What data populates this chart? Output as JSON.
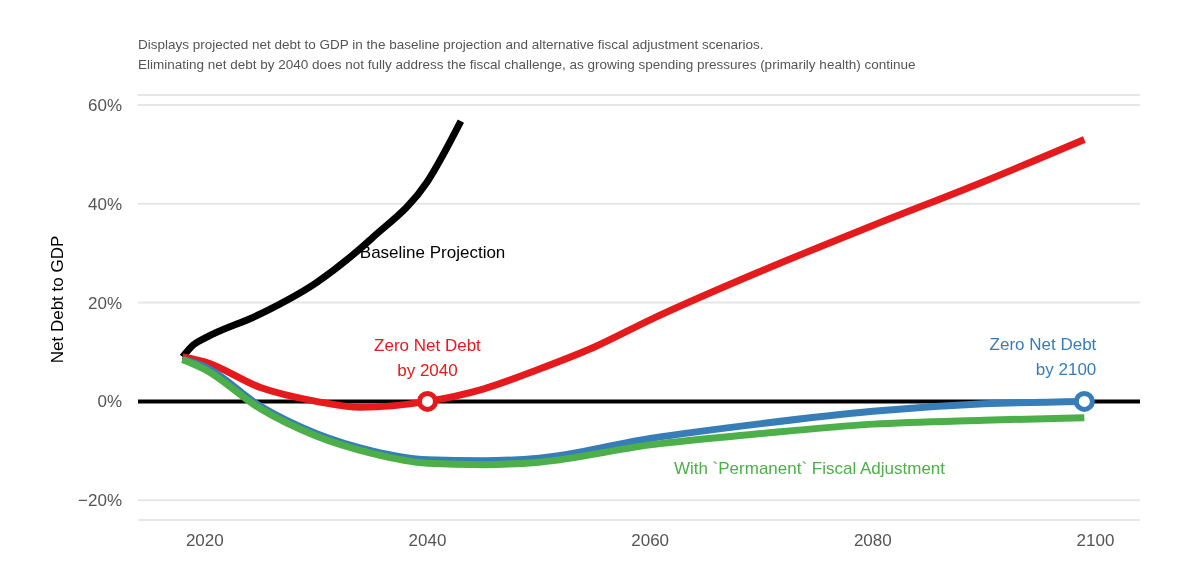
{
  "chart_data": {
    "type": "line",
    "title": "Displays projected net debt to GDP in the baseline projection and alternative fiscal adjustment scenarios.",
    "subtitle": "Eliminating net debt by 2040 does not fully address the fiscal challenge, as growing spending pressures (primarily health) continue",
    "ylabel": "Net Debt to GDP",
    "xlim": [
      2014,
      2104
    ],
    "xticks": [
      2020,
      2040,
      2060,
      2080,
      2100
    ],
    "ylim": [
      -24,
      62
    ],
    "yticks": [
      {
        "value": -20,
        "label": "−20%"
      },
      {
        "value": 0,
        "label": "0%"
      },
      {
        "value": 20,
        "label": "20%"
      },
      {
        "value": 40,
        "label": "40%"
      },
      {
        "value": 60,
        "label": "60%"
      }
    ],
    "grid": "y",
    "legend": false,
    "marker": "none",
    "line_style": "solid",
    "ref_lines": [
      {
        "axis": "y",
        "value": 0,
        "color": "#000000"
      }
    ],
    "series": [
      {
        "name": "Baseline Projection",
        "color": "#000000",
        "x": [
          2018,
          2019,
          2020,
          2025,
          2030,
          2035,
          2040,
          2043
        ],
        "values": [
          9,
          11.5,
          12.8,
          17.7,
          24,
          33,
          44.5,
          56.7
        ]
      },
      {
        "name": "Zero Net Debt\nby 2040",
        "color": "#e41a1c",
        "x": [
          2018,
          2020,
          2025,
          2030,
          2034,
          2040,
          2045,
          2050,
          2055,
          2060,
          2070,
          2080,
          2090,
          2099
        ],
        "values": [
          9,
          8,
          2.8,
          0,
          -1.2,
          0,
          2.5,
          6.5,
          11,
          16.5,
          26.4,
          35.6,
          44.5,
          53
        ]
      },
      {
        "name": "Zero Net Debt\nby 2100",
        "color": "#377eb8",
        "x": [
          2018,
          2020,
          2025,
          2030,
          2035,
          2040,
          2045,
          2050,
          2060,
          2070,
          2080,
          2090,
          2099
        ],
        "values": [
          8.5,
          7,
          -1,
          -6.5,
          -10,
          -11.8,
          -12,
          -11.5,
          -7.5,
          -4.5,
          -2,
          -0.5,
          0
        ]
      },
      {
        "name": "With `Permanent` Fiscal Adjustment",
        "color": "#4daf4a",
        "x": [
          2018,
          2020,
          2025,
          2030,
          2035,
          2040,
          2045,
          2050,
          2060,
          2070,
          2080,
          2090,
          2099
        ],
        "values": [
          8.5,
          6.5,
          -1.5,
          -7,
          -10.5,
          -12.5,
          -12.8,
          -12.3,
          -8.8,
          -6.5,
          -4.6,
          -3.8,
          -3.3
        ]
      },
      {
        "type": "scatter",
        "marker": "circle",
        "color": "#e41a1c",
        "x": [
          2040
        ],
        "values": [
          0
        ]
      },
      {
        "type": "scatter",
        "marker": "circle",
        "color": "#377eb8",
        "x": [
          2099
        ],
        "values": [
          0
        ]
      }
    ]
  }
}
